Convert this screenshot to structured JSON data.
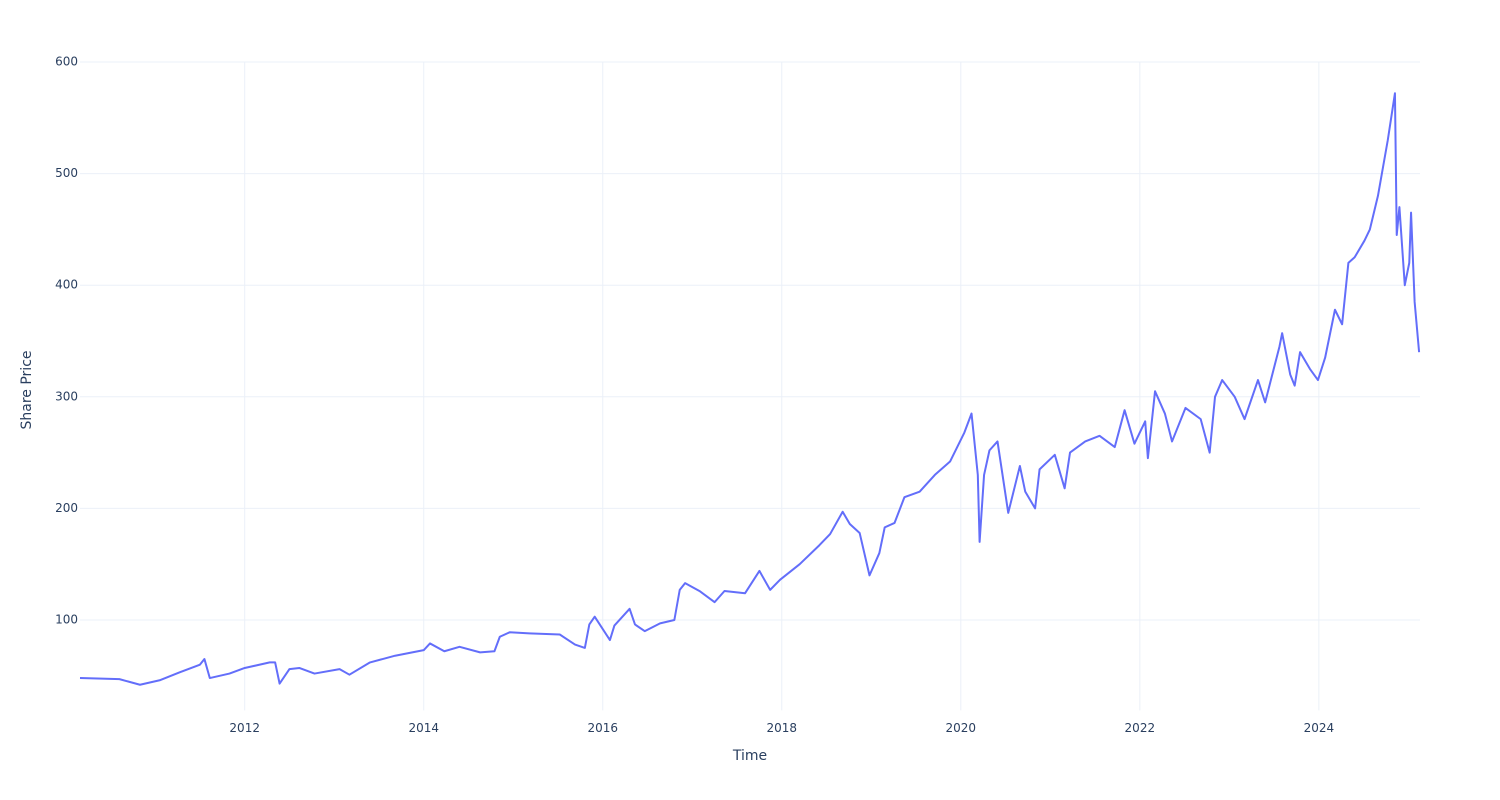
{
  "chart_data": {
    "type": "line",
    "x_label": "Time",
    "y_label": "Share Price",
    "x": [
      2010.16,
      2010.6,
      2010.83,
      2011.05,
      2011.27,
      2011.5,
      2011.55,
      2011.61,
      2011.83,
      2012.0,
      2012.28,
      2012.34,
      2012.39,
      2012.5,
      2012.61,
      2012.78,
      2013.06,
      2013.17,
      2013.4,
      2013.68,
      2014.0,
      2014.07,
      2014.23,
      2014.4,
      2014.63,
      2014.79,
      2014.85,
      2014.96,
      2015.18,
      2015.52,
      2015.69,
      2015.8,
      2015.85,
      2015.91,
      2016.08,
      2016.13,
      2016.3,
      2016.36,
      2016.47,
      2016.64,
      2016.8,
      2016.86,
      2016.92,
      2017.08,
      2017.25,
      2017.36,
      2017.59,
      2017.75,
      2017.87,
      2017.98,
      2018.2,
      2018.42,
      2018.54,
      2018.68,
      2018.76,
      2018.87,
      2018.98,
      2019.09,
      2019.15,
      2019.26,
      2019.37,
      2019.54,
      2019.71,
      2019.88,
      2020.04,
      2020.12,
      2020.19,
      2020.21,
      2020.26,
      2020.32,
      2020.41,
      2020.53,
      2020.66,
      2020.72,
      2020.83,
      2020.88,
      2021.05,
      2021.16,
      2021.22,
      2021.39,
      2021.55,
      2021.72,
      2021.83,
      2021.94,
      2022.06,
      2022.09,
      2022.17,
      2022.28,
      2022.36,
      2022.51,
      2022.68,
      2022.78,
      2022.84,
      2022.92,
      2023.06,
      2023.17,
      2023.32,
      2023.4,
      2023.56,
      2023.59,
      2023.68,
      2023.73,
      2023.79,
      2023.9,
      2023.99,
      2024.07,
      2024.18,
      2024.26,
      2024.33,
      2024.4,
      2024.51,
      2024.57,
      2024.66,
      2024.77,
      2024.85,
      2024.87,
      2024.9,
      2024.96,
      2025.01,
      2025.03,
      2025.07,
      2025.12
    ],
    "series": [
      {
        "name": "Share Price",
        "color": "#636efa",
        "values": [
          48,
          47,
          42,
          46,
          53,
          60,
          65,
          48,
          52,
          57,
          62,
          62,
          43,
          56,
          57,
          52,
          56,
          51,
          62,
          68,
          73,
          79,
          72,
          76,
          71,
          72,
          85,
          89,
          88,
          87,
          78,
          75,
          96,
          103,
          82,
          95,
          110,
          96,
          90,
          97,
          100,
          127,
          133,
          126,
          116,
          126,
          124,
          144,
          127,
          136,
          150,
          167,
          177,
          197,
          186,
          178,
          140,
          160,
          183,
          187,
          210,
          215,
          230,
          242,
          268,
          285,
          230,
          170,
          230,
          252,
          260,
          196,
          238,
          215,
          200,
          235,
          248,
          218,
          250,
          260,
          265,
          255,
          288,
          258,
          278,
          245,
          305,
          285,
          260,
          290,
          280,
          250,
          300,
          315,
          300,
          280,
          315,
          295,
          345,
          357,
          320,
          310,
          340,
          325,
          315,
          335,
          378,
          365,
          420,
          425,
          440,
          450,
          480,
          530,
          572,
          445,
          470,
          400,
          420,
          465,
          385,
          340
        ]
      }
    ],
    "xlim": [
      2010.16,
      2025.13
    ],
    "xticks": [
      2012,
      2014,
      2016,
      2018,
      2020,
      2022,
      2024
    ],
    "ylim": [
      19,
      600
    ],
    "yticks": [
      100,
      200,
      300,
      400,
      500,
      600
    ],
    "grid": true
  }
}
